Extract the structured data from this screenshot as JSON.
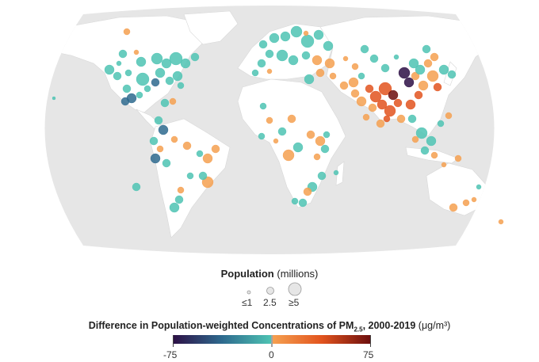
{
  "legend": {
    "population_title": "Population",
    "population_unit": "(millions)",
    "population_sizes": [
      {
        "label": "≤1",
        "value": 1
      },
      {
        "label": "2.5",
        "value": 2.5
      },
      {
        "label": "≥5",
        "value": 5
      }
    ],
    "colorbar_title_pre": "Difference in Population-weighted Concentrations of PM",
    "colorbar_title_sub": "2.5",
    "colorbar_title_post": ", 2000-2019",
    "colorbar_unit": "(μg/m³)",
    "colorbar_ticks": [
      "-75",
      "0",
      "75"
    ],
    "colorbar_range": [
      -75,
      75
    ]
  },
  "colors": {
    "ocean": "#ffffff",
    "globe": "#e6e6e6",
    "land": "#ffffff",
    "negative_strong": "#2d0f45",
    "negative_mid": "#2e6a8e",
    "negative_weak": "#4ec3b3",
    "positive_weak": "#f5a050",
    "positive_mid": "#e2541e",
    "positive_strong": "#6b0d0d"
  }
}
